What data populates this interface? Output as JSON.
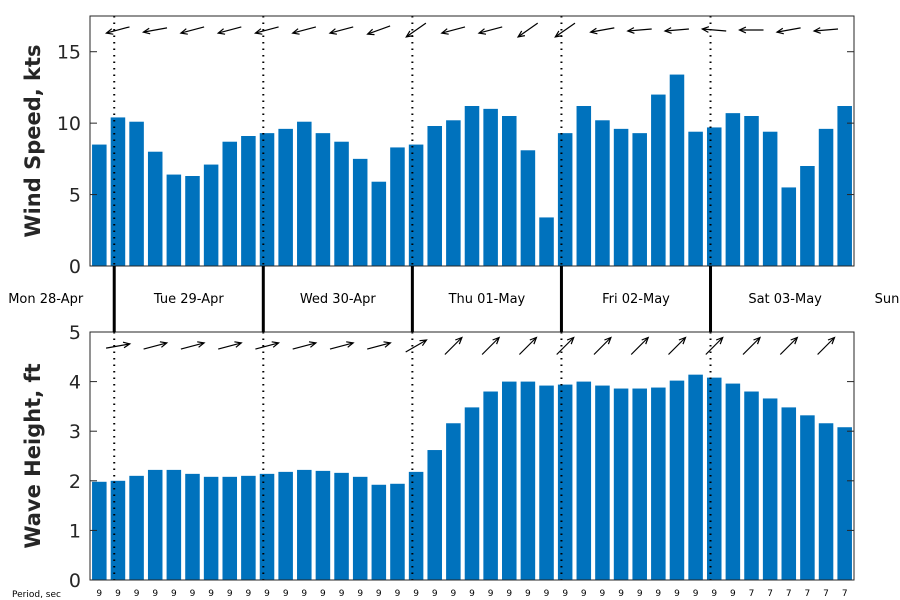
{
  "chart_data": [
    {
      "type": "bar",
      "ylabel": "Wind Speed, kts",
      "ylim": [
        0,
        17.5
      ],
      "yticks": [
        0,
        5,
        10,
        15
      ],
      "color": "#0072bd",
      "values": [
        8.5,
        10.4,
        10.1,
        8.0,
        6.4,
        6.3,
        7.1,
        8.7,
        9.1,
        9.3,
        9.6,
        10.1,
        9.3,
        8.7,
        7.5,
        5.9,
        8.3,
        8.5,
        9.8,
        10.2,
        11.2,
        11.0,
        10.5,
        8.1,
        3.4,
        9.3,
        11.2,
        10.2,
        9.6,
        9.3,
        12.0,
        13.4,
        9.4,
        9.7,
        10.7,
        10.5,
        9.4,
        5.5,
        7.0,
        9.6,
        11.2
      ],
      "direction_from_deg": [
        75,
        75,
        80,
        80,
        75,
        75,
        80,
        75,
        65,
        75,
        80,
        75,
        80,
        75,
        70,
        70,
        60,
        55,
        70,
        75,
        80,
        75,
        70,
        55,
        60,
        55,
        80,
        80,
        80,
        85,
        85,
        85,
        95,
        95,
        95,
        90,
        90,
        80,
        80,
        85,
        80
      ]
    },
    {
      "type": "bar",
      "ylabel": "Wave Height, ft",
      "ylim": [
        0,
        5
      ],
      "yticks": [
        0,
        1,
        2,
        3,
        4,
        5
      ],
      "color": "#0072bd",
      "values": [
        1.98,
        2.0,
        2.1,
        2.22,
        2.22,
        2.14,
        2.08,
        2.08,
        2.1,
        2.14,
        2.18,
        2.22,
        2.2,
        2.16,
        2.08,
        1.92,
        1.94,
        2.18,
        2.62,
        3.16,
        3.48,
        3.8,
        4.0,
        4.0,
        3.92,
        3.94,
        4.0,
        3.92,
        3.86,
        3.86,
        3.88,
        4.02,
        4.14,
        4.08,
        3.96,
        3.8,
        3.66,
        3.48,
        3.32,
        3.16,
        3.08
      ],
      "direction_to_deg": [
        80,
        80,
        75,
        75,
        75,
        75,
        75,
        75,
        75,
        75,
        75,
        75,
        75,
        75,
        75,
        75,
        75,
        60,
        60,
        45,
        45,
        45,
        45,
        45,
        45,
        45,
        45,
        45,
        45,
        45,
        45,
        45,
        45,
        45,
        45,
        45,
        45,
        45,
        45,
        45,
        45
      ]
    }
  ],
  "days": [
    "Mon 28-Apr",
    "Tue 29-Apr",
    "Wed 30-Apr",
    "Thu 01-May",
    "Fri 02-May",
    "Sat 03-May",
    "Sun"
  ],
  "period_label": "Period, sec",
  "periods": [
    9,
    9,
    9,
    9,
    9,
    9,
    9,
    9,
    9,
    9,
    9,
    9,
    9,
    9,
    9,
    9,
    9,
    9,
    9,
    9,
    9,
    9,
    9,
    9,
    9,
    9,
    9,
    9,
    9,
    9,
    9,
    9,
    9,
    9,
    9,
    7,
    7,
    7,
    7,
    7,
    7
  ]
}
